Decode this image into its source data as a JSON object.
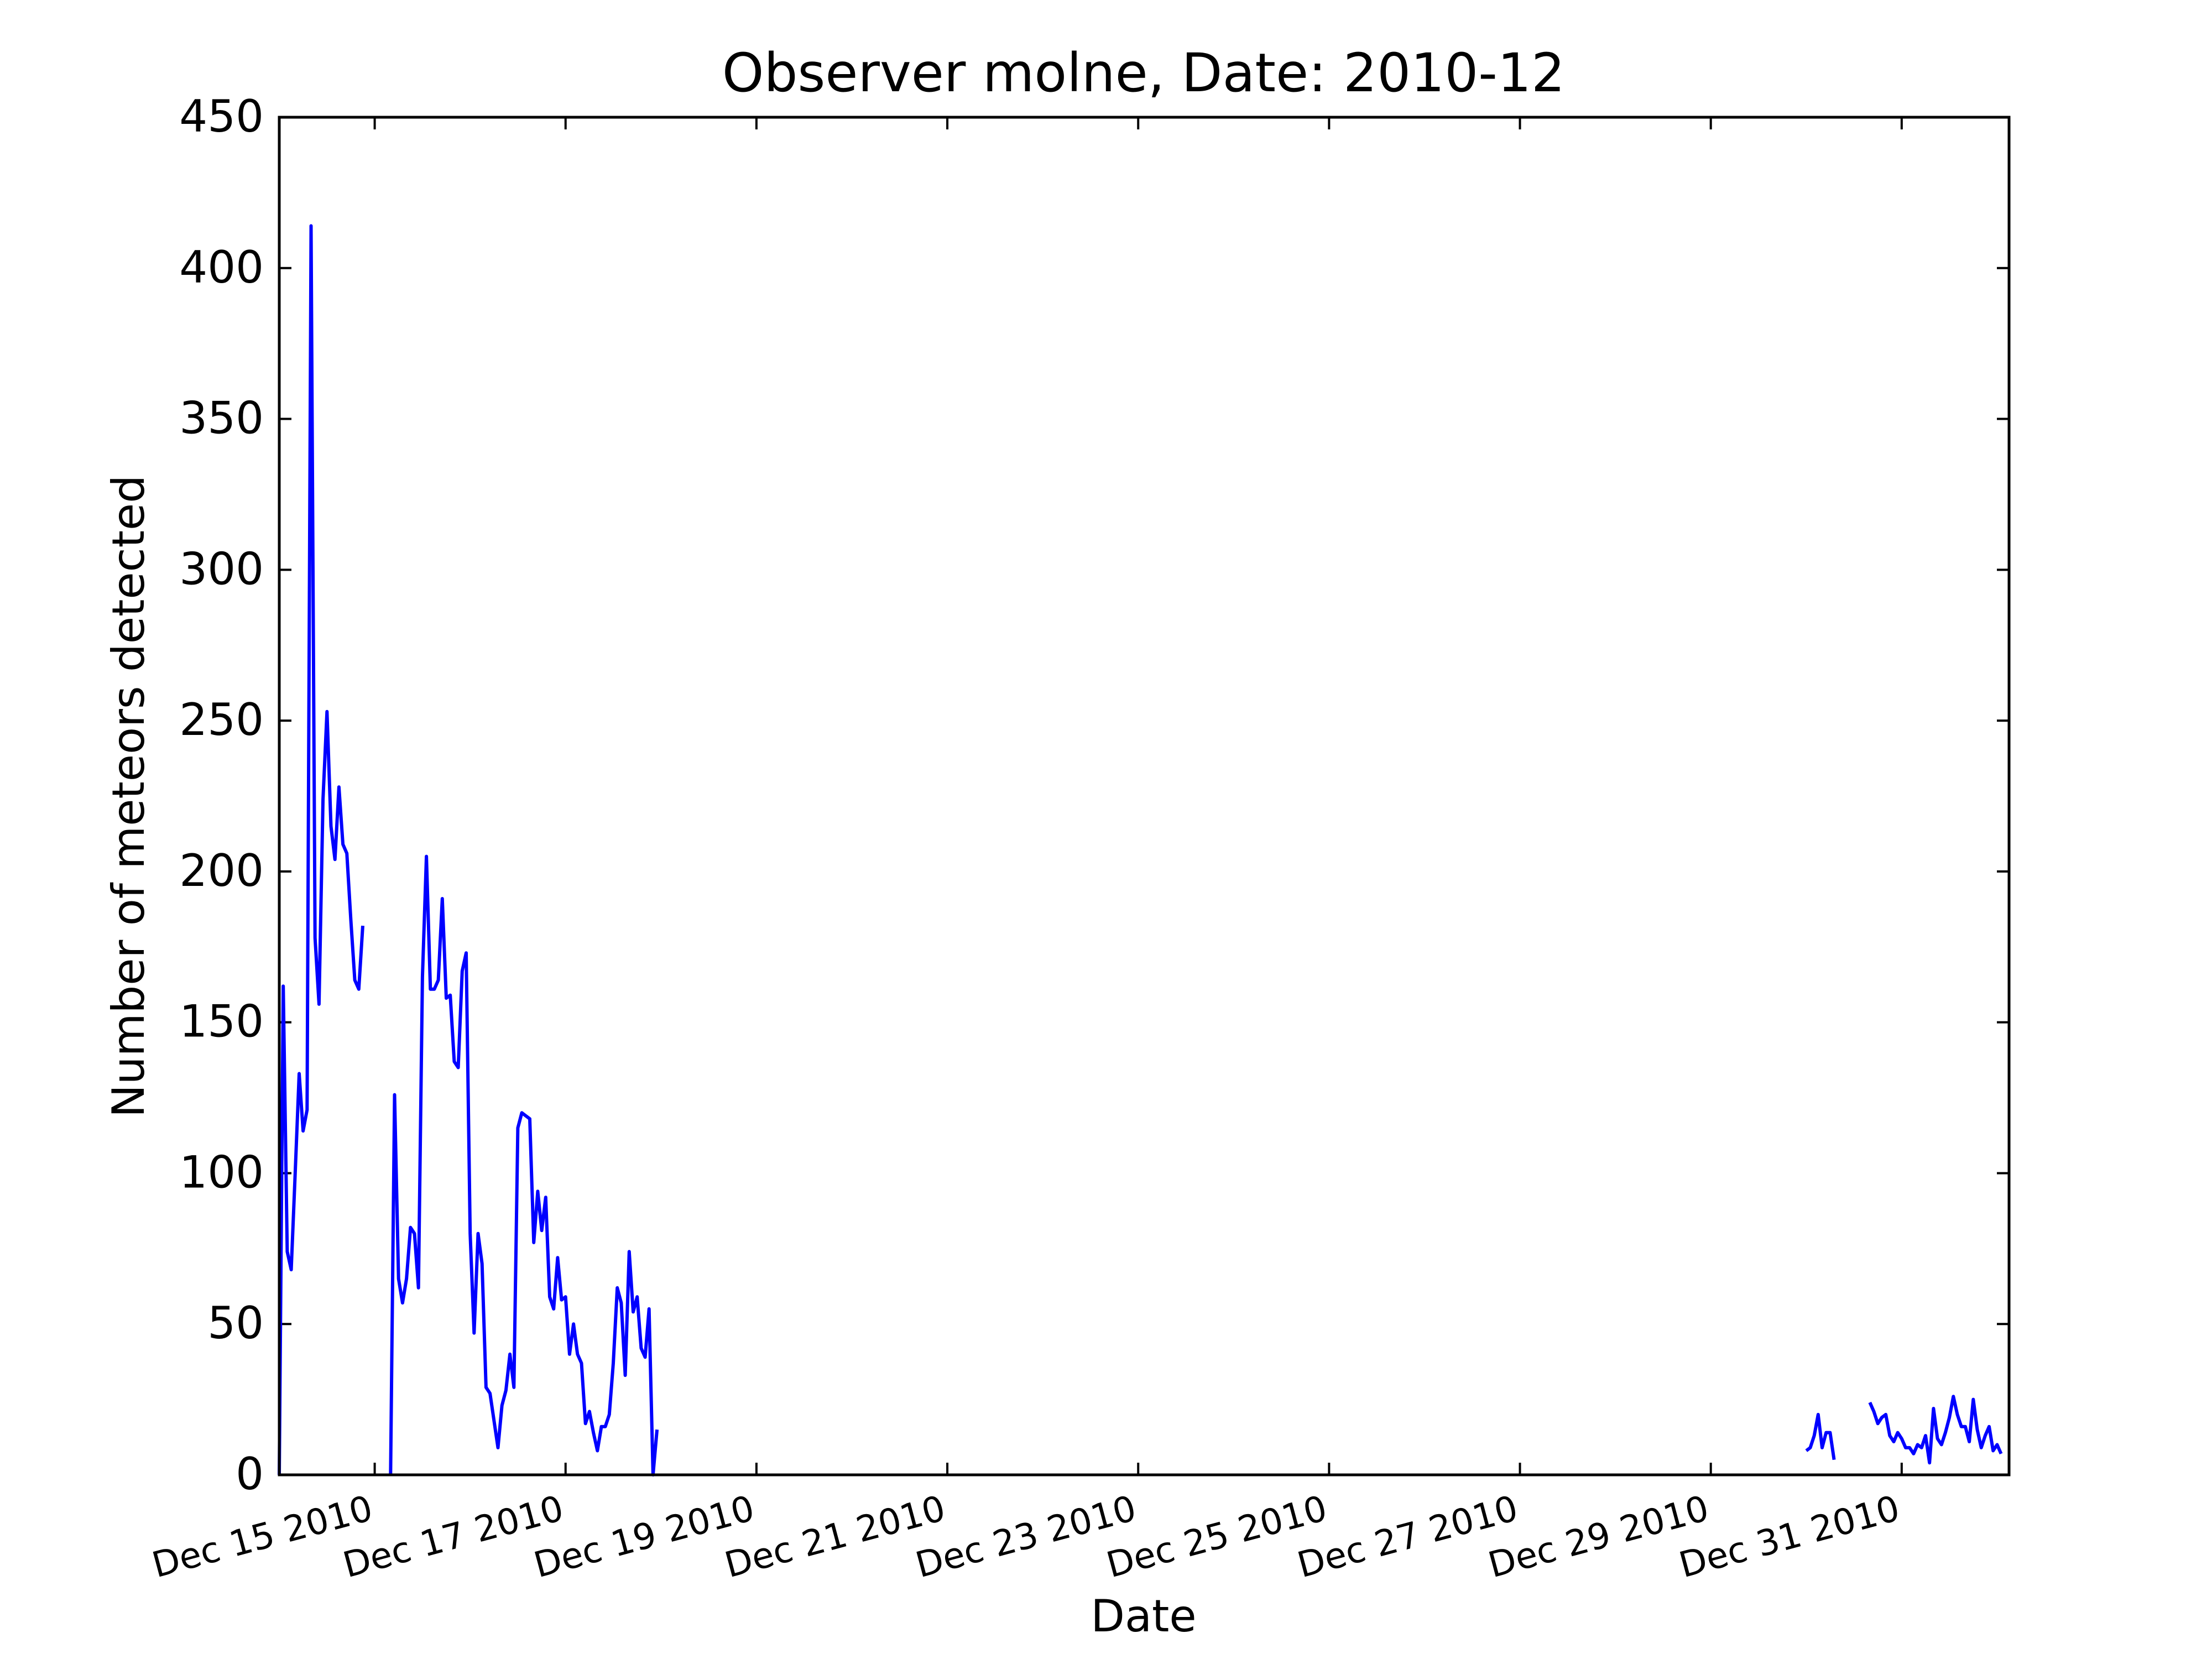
{
  "chart_data": {
    "type": "line",
    "title": "Observer molne, Date: 2010-12",
    "xlabel": "Date",
    "ylabel": "Number of meteors detected",
    "xlim": [
      "2010-12-14T00:00",
      "2011-01-01T03:00"
    ],
    "ylim": [
      0,
      450
    ],
    "yticks": [
      0,
      50,
      100,
      150,
      200,
      250,
      300,
      350,
      400,
      450
    ],
    "xticks": [
      {
        "date": "2010-12-15",
        "label": "Dec 15 2010"
      },
      {
        "date": "2010-12-17",
        "label": "Dec 17 2010"
      },
      {
        "date": "2010-12-19",
        "label": "Dec 19 2010"
      },
      {
        "date": "2010-12-21",
        "label": "Dec 21 2010"
      },
      {
        "date": "2010-12-23",
        "label": "Dec 23 2010"
      },
      {
        "date": "2010-12-25",
        "label": "Dec 25 2010"
      },
      {
        "date": "2010-12-27",
        "label": "Dec 27 2010"
      },
      {
        "date": "2010-12-29",
        "label": "Dec 29 2010"
      },
      {
        "date": "2010-12-31",
        "label": "Dec 31 2010"
      }
    ],
    "grid": false,
    "series": [
      {
        "color": "#0000ff",
        "segments": [
          [
            [
              "2010-12-14T00:00",
              0
            ],
            [
              "2010-12-14T01:00",
              162
            ],
            [
              "2010-12-14T02:00",
              74
            ],
            [
              "2010-12-14T03:00",
              68
            ],
            [
              "2010-12-14T04:00",
              100
            ],
            [
              "2010-12-14T05:00",
              133
            ],
            [
              "2010-12-14T06:00",
              114
            ],
            [
              "2010-12-14T07:00",
              121
            ],
            [
              "2010-12-14T08:00",
              414
            ],
            [
              "2010-12-14T09:00",
              178
            ],
            [
              "2010-12-14T10:00",
              156
            ],
            [
              "2010-12-14T11:00",
              224
            ],
            [
              "2010-12-14T12:00",
              253
            ],
            [
              "2010-12-14T13:00",
              215
            ],
            [
              "2010-12-14T14:00",
              204
            ],
            [
              "2010-12-14T15:00",
              228
            ],
            [
              "2010-12-14T16:00",
              209
            ],
            [
              "2010-12-14T17:00",
              206
            ],
            [
              "2010-12-14T18:00",
              184
            ],
            [
              "2010-12-14T19:00",
              164
            ],
            [
              "2010-12-14T20:00",
              161
            ],
            [
              "2010-12-14T21:00",
              182
            ]
          ],
          [
            [
              "2010-12-15T04:00",
              0
            ],
            [
              "2010-12-15T05:00",
              126
            ],
            [
              "2010-12-15T06:00",
              65
            ],
            [
              "2010-12-15T07:00",
              57
            ],
            [
              "2010-12-15T08:00",
              65
            ],
            [
              "2010-12-15T09:00",
              82
            ],
            [
              "2010-12-15T10:00",
              80
            ],
            [
              "2010-12-15T11:00",
              62
            ],
            [
              "2010-12-15T12:00",
              165
            ],
            [
              "2010-12-15T13:00",
              205
            ],
            [
              "2010-12-15T14:00",
              161
            ],
            [
              "2010-12-15T15:00",
              161
            ],
            [
              "2010-12-15T16:00",
              164
            ],
            [
              "2010-12-15T17:00",
              191
            ],
            [
              "2010-12-15T18:00",
              158
            ],
            [
              "2010-12-15T19:00",
              159
            ],
            [
              "2010-12-15T20:00",
              137
            ],
            [
              "2010-12-15T21:00",
              135
            ],
            [
              "2010-12-15T22:00",
              167
            ],
            [
              "2010-12-15T23:00",
              173
            ],
            [
              "2010-12-16T00:00",
              80
            ],
            [
              "2010-12-16T01:00",
              47
            ],
            [
              "2010-12-16T02:00",
              80
            ],
            [
              "2010-12-16T03:00",
              70
            ],
            [
              "2010-12-16T04:00",
              29
            ],
            [
              "2010-12-16T05:00",
              27
            ],
            [
              "2010-12-16T06:00",
              18
            ],
            [
              "2010-12-16T07:00",
              9
            ],
            [
              "2010-12-16T08:00",
              23
            ],
            [
              "2010-12-16T09:00",
              28
            ],
            [
              "2010-12-16T10:00",
              40
            ],
            [
              "2010-12-16T11:00",
              29
            ],
            [
              "2010-12-16T12:00",
              115
            ],
            [
              "2010-12-16T13:00",
              120
            ],
            [
              "2010-12-16T14:00",
              119
            ],
            [
              "2010-12-16T15:00",
              118
            ],
            [
              "2010-12-16T16:00",
              77
            ],
            [
              "2010-12-16T17:00",
              94
            ],
            [
              "2010-12-16T18:00",
              81
            ],
            [
              "2010-12-16T19:00",
              92
            ],
            [
              "2010-12-16T20:00",
              59
            ],
            [
              "2010-12-16T21:00",
              55
            ],
            [
              "2010-12-16T22:00",
              72
            ],
            [
              "2010-12-16T23:00",
              58
            ],
            [
              "2010-12-17T00:00",
              59
            ],
            [
              "2010-12-17T01:00",
              40
            ],
            [
              "2010-12-17T02:00",
              50
            ],
            [
              "2010-12-17T03:00",
              40
            ],
            [
              "2010-12-17T04:00",
              37
            ],
            [
              "2010-12-17T05:00",
              17
            ],
            [
              "2010-12-17T06:00",
              21
            ],
            [
              "2010-12-17T07:00",
              14
            ],
            [
              "2010-12-17T08:00",
              8
            ],
            [
              "2010-12-17T09:00",
              16
            ],
            [
              "2010-12-17T10:00",
              16
            ],
            [
              "2010-12-17T11:00",
              20
            ],
            [
              "2010-12-17T12:00",
              37
            ],
            [
              "2010-12-17T13:00",
              62
            ],
            [
              "2010-12-17T14:00",
              57
            ],
            [
              "2010-12-17T15:00",
              33
            ],
            [
              "2010-12-17T16:00",
              74
            ],
            [
              "2010-12-17T17:00",
              54
            ],
            [
              "2010-12-17T18:00",
              59
            ],
            [
              "2010-12-17T19:00",
              42
            ],
            [
              "2010-12-17T20:00",
              39
            ],
            [
              "2010-12-17T21:00",
              55
            ],
            [
              "2010-12-17T22:00",
              0
            ],
            [
              "2010-12-17T23:00",
              15
            ]
          ],
          [
            [
              "2010-12-30T00:00",
              8
            ],
            [
              "2010-12-30T01:00",
              9
            ],
            [
              "2010-12-30T02:00",
              13
            ],
            [
              "2010-12-30T03:00",
              20
            ],
            [
              "2010-12-30T04:00",
              9
            ],
            [
              "2010-12-30T05:00",
              14
            ],
            [
              "2010-12-30T06:00",
              14
            ],
            [
              "2010-12-30T07:00",
              5
            ]
          ],
          [
            [
              "2010-12-30T16:00",
              24
            ],
            [
              "2010-12-30T17:00",
              21
            ],
            [
              "2010-12-30T18:00",
              17
            ],
            [
              "2010-12-30T19:00",
              19
            ],
            [
              "2010-12-30T20:00",
              20
            ],
            [
              "2010-12-30T21:00",
              13
            ],
            [
              "2010-12-30T22:00",
              11
            ],
            [
              "2010-12-30T23:00",
              14
            ],
            [
              "2010-12-31T00:00",
              12
            ],
            [
              "2010-12-31T01:00",
              9
            ],
            [
              "2010-12-31T02:00",
              9
            ],
            [
              "2010-12-31T03:00",
              7
            ],
            [
              "2010-12-31T04:00",
              10
            ],
            [
              "2010-12-31T05:00",
              9
            ],
            [
              "2010-12-31T06:00",
              13
            ],
            [
              "2010-12-31T07:00",
              4
            ],
            [
              "2010-12-31T08:00",
              22
            ],
            [
              "2010-12-31T09:00",
              12
            ],
            [
              "2010-12-31T10:00",
              10
            ],
            [
              "2010-12-31T11:00",
              14
            ],
            [
              "2010-12-31T12:00",
              19
            ],
            [
              "2010-12-31T13:00",
              26
            ],
            [
              "2010-12-31T14:00",
              20
            ],
            [
              "2010-12-31T15:00",
              16
            ],
            [
              "2010-12-31T16:00",
              16
            ],
            [
              "2010-12-31T17:00",
              11
            ],
            [
              "2010-12-31T18:00",
              25
            ],
            [
              "2010-12-31T19:00",
              15
            ],
            [
              "2010-12-31T20:00",
              9
            ],
            [
              "2010-12-31T21:00",
              13
            ],
            [
              "2010-12-31T22:00",
              16
            ],
            [
              "2010-12-31T23:00",
              8
            ],
            [
              "2011-01-01T00:00",
              10
            ],
            [
              "2011-01-01T01:00",
              7
            ]
          ]
        ]
      }
    ]
  }
}
